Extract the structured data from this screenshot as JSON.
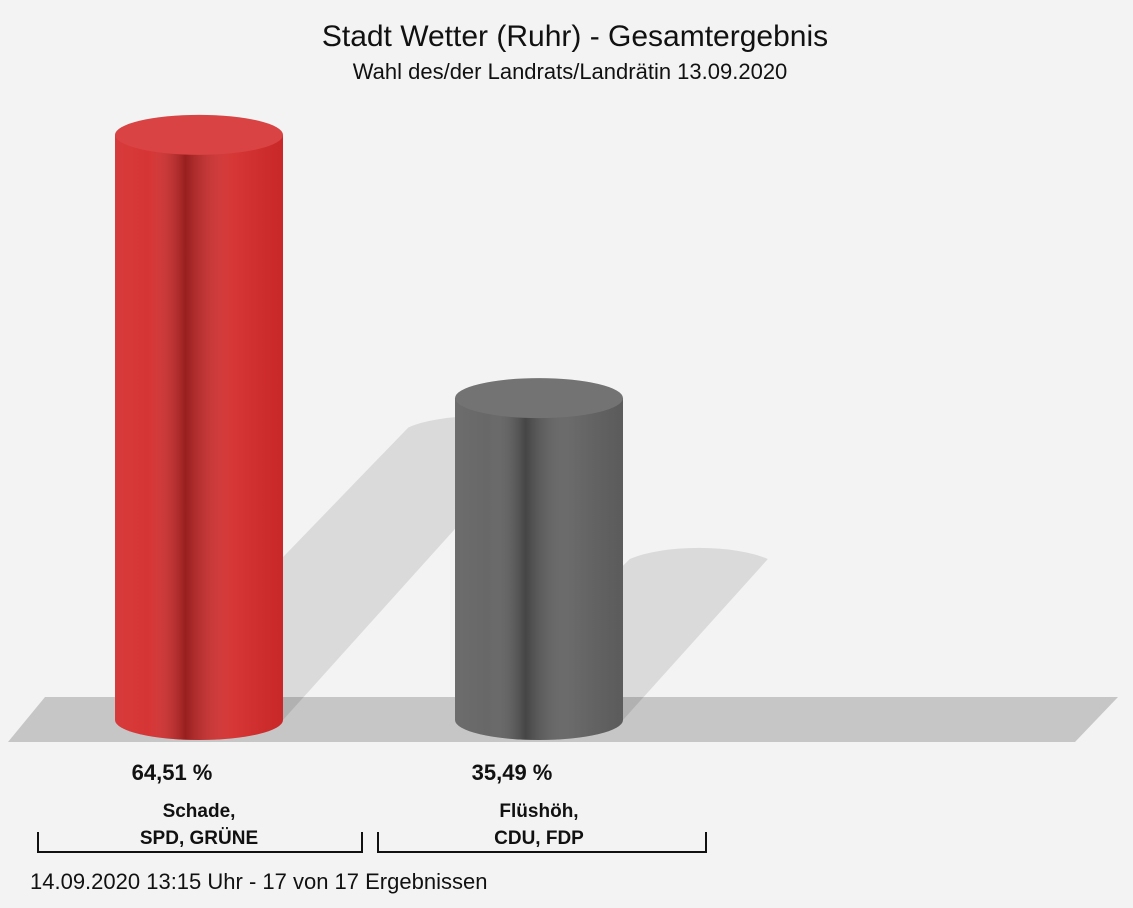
{
  "chart_data": {
    "type": "bar",
    "title": "Stadt Wetter (Ruhr) - Gesamtergebnis",
    "subtitle": "Wahl des/der Landrats/Landrätin 13.09.2020",
    "categories": [
      "Schade,\nSPD, GRÜNE",
      "Flüshöh,\nCDU, FDP"
    ],
    "values": [
      64.51,
      35.49
    ],
    "value_labels": [
      "64,51 %",
      "35,49 %"
    ],
    "colors": [
      "#d42a2a",
      "#606060"
    ],
    "footer": "14.09.2020 13:15 Uhr - 17 von 17 Ergebnissen"
  }
}
